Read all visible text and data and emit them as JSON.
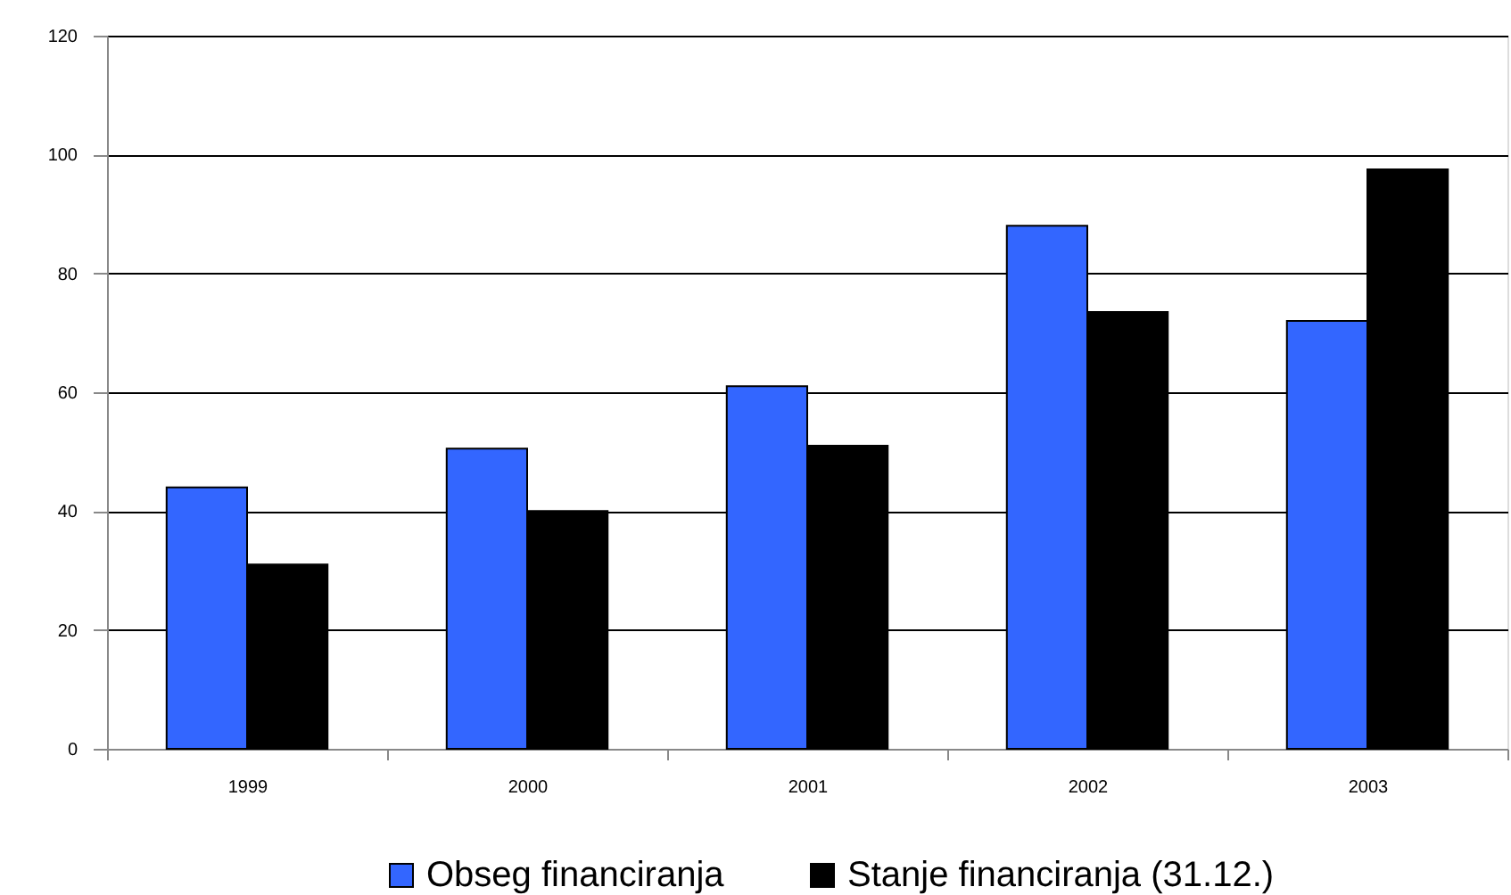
{
  "chart_data": {
    "type": "bar",
    "categories": [
      "1999",
      "2000",
      "2001",
      "2002",
      "2003"
    ],
    "series": [
      {
        "name": "Obseg financiranja",
        "color": "#3366ff",
        "values": [
          44,
          50.5,
          61,
          88,
          72
        ]
      },
      {
        "name": "Stanje financiranja (31.12.)",
        "color": "#000000",
        "values": [
          31,
          40,
          51,
          73.5,
          97.5
        ]
      }
    ],
    "ylim": [
      0,
      120
    ],
    "yticks": [
      0,
      20,
      40,
      60,
      80,
      100,
      120
    ],
    "grid": "y",
    "legend": "bottom"
  }
}
